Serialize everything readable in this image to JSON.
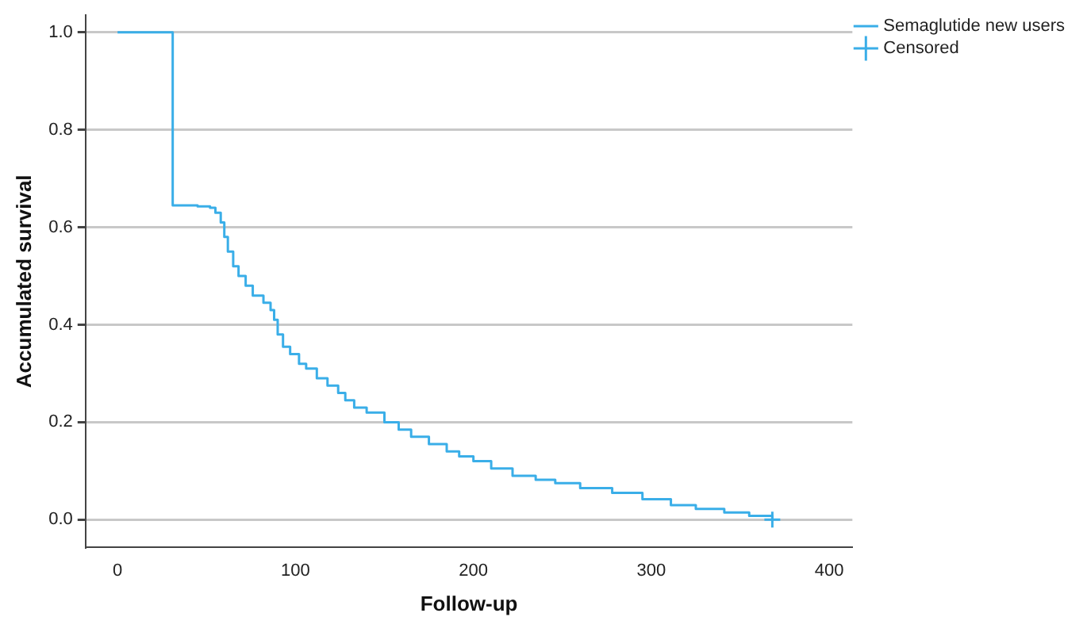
{
  "chart_data": {
    "type": "step",
    "xlabel": "Follow-up",
    "ylabel": "Accumulated survival",
    "xlim": [
      -18,
      413
    ],
    "ylim": [
      -0.057,
      1.035
    ],
    "xticks": [
      0,
      100,
      200,
      300,
      400
    ],
    "yticks": [
      {
        "value": 0,
        "label": "0.0"
      },
      {
        "value": 0.2,
        "label": "0.2"
      },
      {
        "value": 0.4,
        "label": "0.4"
      },
      {
        "value": 0.6,
        "label": "0.6"
      },
      {
        "value": 0.8,
        "label": "0.8"
      },
      {
        "value": 1,
        "label": "1.0"
      }
    ],
    "grid": "y",
    "legend": "top right",
    "series": [
      {
        "name": "Semaglutide new users",
        "type": "step",
        "color": "#3aaee8",
        "x": [
          0,
          31,
          45,
          52,
          55,
          58,
          60,
          62,
          65,
          68,
          72,
          76,
          82,
          86,
          88,
          90,
          93,
          97,
          102,
          106,
          112,
          118,
          124,
          128,
          133,
          140,
          150,
          158,
          165,
          175,
          185,
          192,
          200,
          210,
          222,
          235,
          246,
          260,
          278,
          295,
          311,
          325,
          341,
          355,
          368
        ],
        "values": [
          1.0,
          0.645,
          0.643,
          0.64,
          0.63,
          0.61,
          0.58,
          0.55,
          0.52,
          0.5,
          0.48,
          0.46,
          0.445,
          0.43,
          0.41,
          0.38,
          0.355,
          0.34,
          0.32,
          0.31,
          0.29,
          0.275,
          0.26,
          0.245,
          0.23,
          0.22,
          0.2,
          0.185,
          0.17,
          0.155,
          0.14,
          0.13,
          0.12,
          0.105,
          0.09,
          0.082,
          0.075,
          0.065,
          0.055,
          0.042,
          0.03,
          0.022,
          0.015,
          0.008,
          0.0
        ]
      },
      {
        "name": "Censored",
        "type": "scatter",
        "marker": "cross",
        "color": "#3aaee8",
        "x": [
          368
        ],
        "values": [
          0.0
        ]
      }
    ]
  }
}
